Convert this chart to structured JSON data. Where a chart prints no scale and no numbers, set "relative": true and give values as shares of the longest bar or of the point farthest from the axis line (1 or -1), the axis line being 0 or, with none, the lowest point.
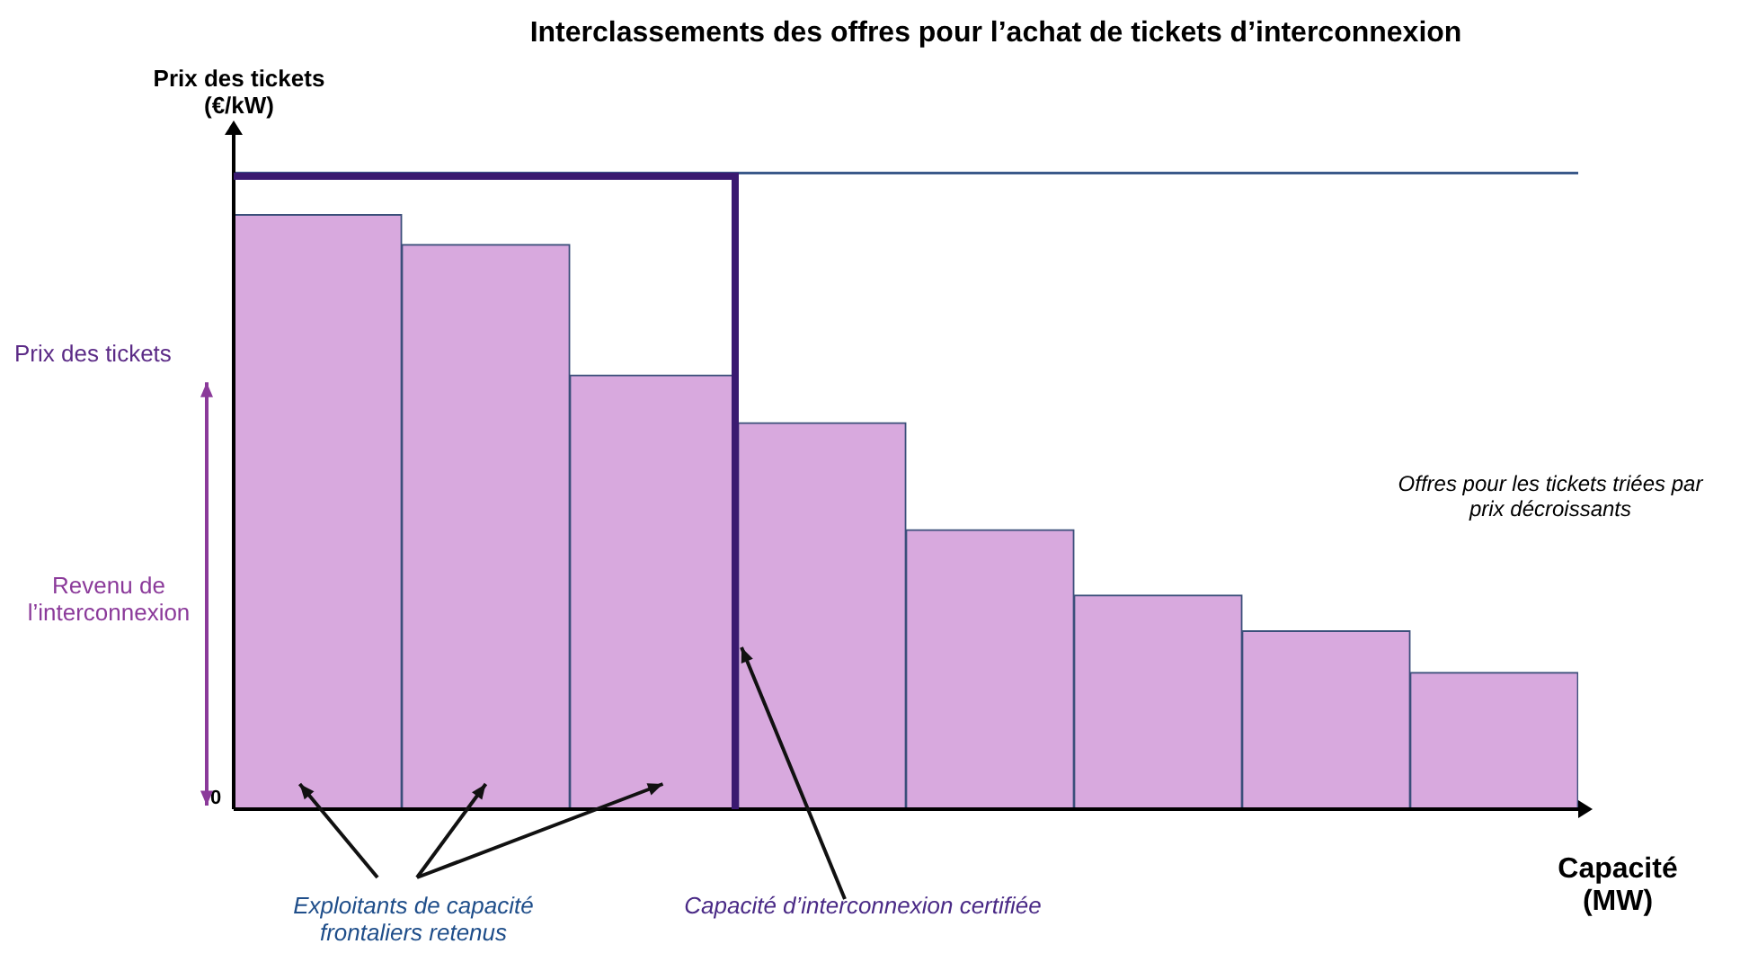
{
  "chart_data": {
    "type": "bar",
    "title": "Interclassements des offres pour l’achat de tickets d’interconnexion",
    "xlabel": "Capacité (MW)",
    "ylabel": "Prix des tickets (€/kW)",
    "categories": [
      null,
      null,
      null,
      null,
      null,
      null,
      null,
      null
    ],
    "values": [
      1,
      0.95,
      0.73,
      0.65,
      0.47,
      0.36,
      0.3,
      0.23
    ],
    "color": "#d8a9de",
    "relative": true,
    "ref_lines": [
      {
        "axis": "y",
        "value": 1.07,
        "color": "#3b5a8a"
      }
    ],
    "annotations": [
      "Prix des tickets",
      "Revenu de l’interconnexion",
      "0",
      "Offres pour les tickets triées par prix décroissants",
      "Exploitants de capacité frontaliers retenus",
      "Capacité d’interconnexion certifiée"
    ],
    "grid": false,
    "legend": false
  }
}
